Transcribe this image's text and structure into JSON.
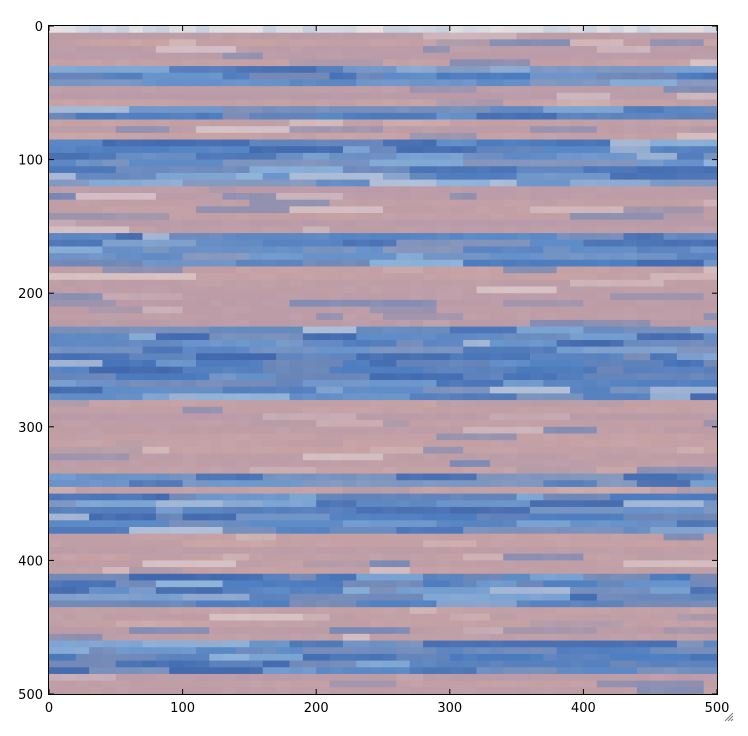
{
  "chart_data": {
    "type": "heatmap",
    "title": "",
    "xlabel": "",
    "ylabel": "",
    "xlim": [
      0,
      500
    ],
    "ylim": [
      500,
      0
    ],
    "x_origin": "top-left",
    "grid": false,
    "x_ticks": [
      0,
      100,
      200,
      300,
      400,
      500
    ],
    "y_ticks": [
      0,
      100,
      200,
      300,
      400,
      500
    ],
    "x_tick_labels": [
      "0",
      "100",
      "200",
      "300",
      "400",
      "500"
    ],
    "y_tick_labels": [
      "0",
      "100",
      "200",
      "300",
      "400",
      "500"
    ],
    "colors": {
      "pink": "#c9a3a3",
      "mauve": "#b89aa8",
      "blue": "#4a7bbf",
      "dark_blue": "#3e62a8",
      "light_blue": "#8fb3d9",
      "white": "#eae3e3",
      "frame": "#000000"
    }
  }
}
